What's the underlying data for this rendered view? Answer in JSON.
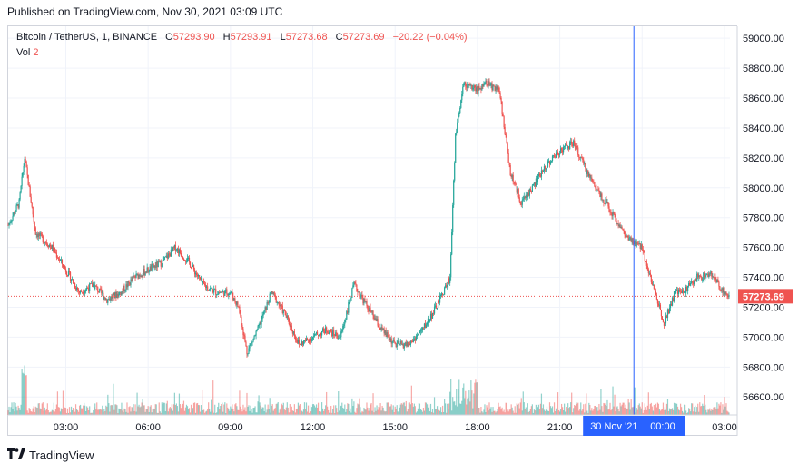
{
  "header": {
    "published": "Published on TradingView.com, Nov 30, 2021 03:09 UTC"
  },
  "legend": {
    "symbol": "Bitcoin / TetherUS, 1, BINANCE",
    "o_label": "O",
    "o_value": "57293.90",
    "h_label": "H",
    "h_value": "57293.91",
    "l_label": "L",
    "l_value": "57273.68",
    "c_label": "C",
    "c_value": "57273.69",
    "change": "−20.22 (−0.04%)",
    "vol_label": "Vol",
    "vol_value": "2"
  },
  "footer": {
    "brand": "TradingView"
  },
  "colors": {
    "up": "#26a69a",
    "down": "#ef5350",
    "crosshair": "#2962ff",
    "price_tag": "#ef5350"
  },
  "chart_data": {
    "type": "line",
    "subtype": "candlestick",
    "title": "Bitcoin / TetherUS, 1, BINANCE",
    "ylim": [
      56480,
      59080
    ],
    "y_ticks": [
      "59000.00",
      "58800.00",
      "58600.00",
      "58400.00",
      "58200.00",
      "58000.00",
      "57800.00",
      "57600.00",
      "57400.00",
      "57200.00",
      "57000.00",
      "56800.00",
      "56600.00"
    ],
    "x_ticks": [
      "03:00",
      "06:00",
      "09:00",
      "12:00",
      "15:00",
      "18:00",
      "21:00",
      "30 Nov '21",
      "03:00"
    ],
    "x_tick_hours": [
      3,
      6,
      9,
      12,
      15,
      18,
      21,
      24,
      27
    ],
    "x_range_hours": [
      0.9,
      27.2
    ],
    "last_price": "57273.69",
    "crosshair_label_date": "30 Nov '21",
    "crosshair_label_time": "00:00",
    "crosshair_hours": 23.7,
    "price_path": {
      "hours": [
        0.9,
        1.3,
        1.5,
        1.9,
        2.5,
        3.0,
        3.5,
        4.0,
        4.5,
        5.0,
        5.5,
        6.0,
        6.5,
        7.0,
        7.5,
        8.0,
        8.5,
        9.0,
        9.3,
        9.6,
        10.0,
        10.5,
        11.0,
        11.5,
        12.0,
        12.5,
        13.0,
        13.5,
        14.0,
        14.5,
        15.0,
        15.5,
        16.0,
        16.5,
        17.0,
        17.2,
        17.5,
        18.0,
        18.3,
        18.8,
        19.2,
        19.6,
        20.0,
        20.5,
        21.0,
        21.5,
        22.0,
        22.5,
        23.0,
        23.5,
        24.0,
        24.3,
        24.8,
        25.2,
        25.5,
        26.0,
        26.5,
        27.0,
        27.2
      ],
      "prices": [
        57750,
        57900,
        58200,
        57700,
        57600,
        57450,
        57300,
        57350,
        57250,
        57300,
        57400,
        57450,
        57500,
        57600,
        57500,
        57350,
        57300,
        57300,
        57200,
        56900,
        57050,
        57300,
        57150,
        56950,
        57000,
        57050,
        57000,
        57350,
        57200,
        57050,
        56950,
        56950,
        57050,
        57200,
        57400,
        58350,
        58700,
        58650,
        58700,
        58650,
        58100,
        57900,
        58000,
        58150,
        58250,
        58300,
        58100,
        57950,
        57800,
        57650,
        57600,
        57400,
        57100,
        57300,
        57300,
        57400,
        57420,
        57300,
        57274
      ]
    },
    "volume_series": {
      "name": "Vol"
    }
  }
}
